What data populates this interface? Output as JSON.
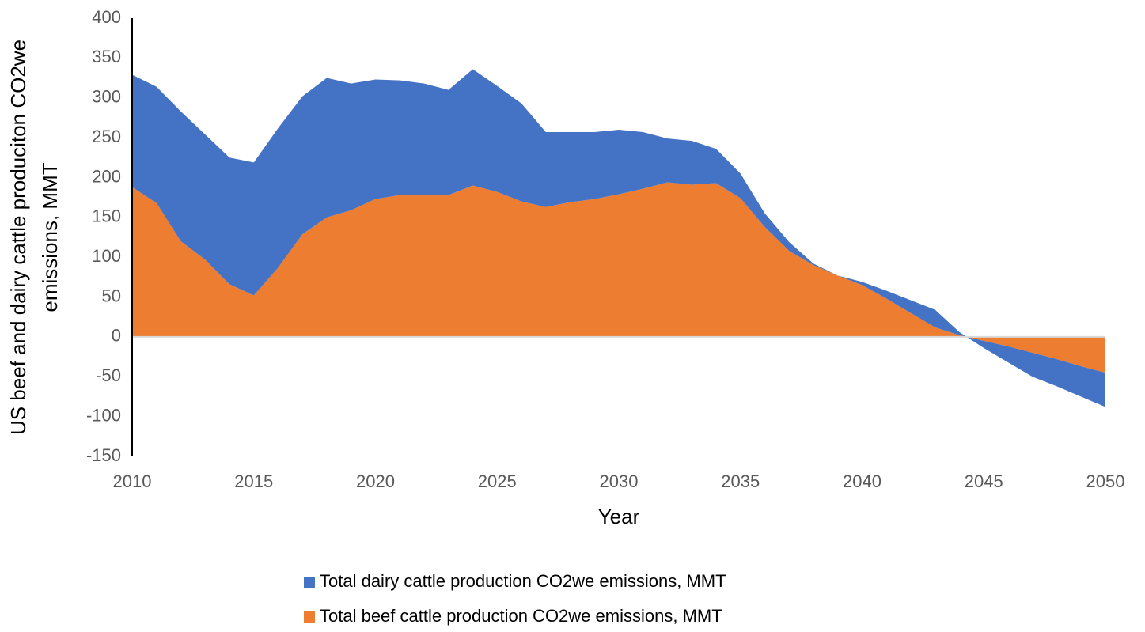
{
  "chart_data": {
    "type": "stacked_area",
    "xlabel": "Year",
    "ylabel": [
      "US beef and dairy cattle produciton CO2we",
      "emissions, MMT"
    ],
    "x": [
      2010,
      2011,
      2012,
      2013,
      2014,
      2015,
      2016,
      2017,
      2018,
      2019,
      2020,
      2021,
      2022,
      2023,
      2024,
      2025,
      2026,
      2027,
      2028,
      2029,
      2030,
      2031,
      2032,
      2033,
      2034,
      2035,
      2036,
      2037,
      2038,
      2039,
      2040,
      2041,
      2042,
      2043,
      2044,
      2045,
      2046,
      2047,
      2048,
      2049,
      2050
    ],
    "series": [
      {
        "name": "Total dairy cattle production CO2we emissions, MMT",
        "color": "#4472c4",
        "values": [
          141,
          146,
          163,
          157,
          159,
          167,
          175,
          173,
          175,
          159,
          150,
          144,
          140,
          132,
          146,
          133,
          123,
          94,
          88,
          84,
          81,
          71,
          55,
          55,
          43,
          31,
          17,
          11,
          2,
          0,
          4,
          10,
          16,
          22,
          4,
          -9,
          -20,
          -30,
          -34,
          -38,
          -43
        ]
      },
      {
        "name": "Total beef cattle production CO2we emissions, MMT",
        "color": "#ed7d31",
        "values": [
          188,
          168,
          120,
          97,
          66,
          52,
          87,
          129,
          150,
          159,
          173,
          178,
          178,
          178,
          190,
          182,
          170,
          163,
          169,
          173,
          179,
          186,
          194,
          191,
          193,
          174,
          138,
          108,
          90,
          77,
          65,
          48,
          30,
          12,
          2,
          -5,
          -12,
          -20,
          -28,
          -37,
          -45
        ]
      }
    ],
    "xlim": [
      2010,
      2050
    ],
    "xticks": [
      2010,
      2015,
      2020,
      2025,
      2030,
      2035,
      2040,
      2045,
      2050
    ],
    "ylim": [
      -150,
      400
    ],
    "yticks": [
      -150,
      -100,
      -50,
      0,
      50,
      100,
      150,
      200,
      250,
      300,
      350,
      400
    ]
  }
}
